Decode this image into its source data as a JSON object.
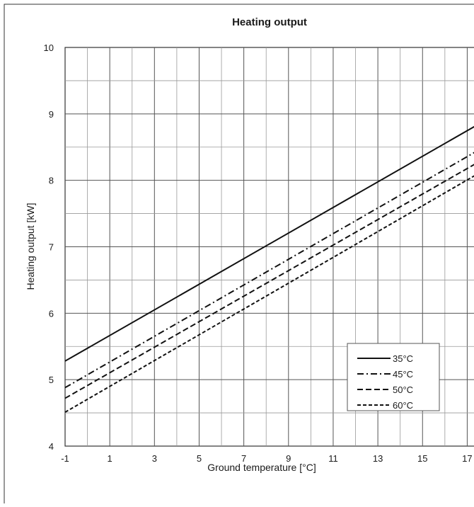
{
  "chart_data": {
    "type": "line",
    "title": "Heating output",
    "xlabel": "Ground temperature [°C]",
    "ylabel": "Heating output [kW]",
    "xlim": [
      -1,
      18
    ],
    "ylim": [
      4,
      10
    ],
    "x_ticks": [
      "-1",
      "1",
      "3",
      "5",
      "7",
      "9",
      "11",
      "13",
      "15",
      "17"
    ],
    "y_ticks": [
      "4",
      "5",
      "6",
      "7",
      "8",
      "9",
      "10"
    ],
    "grid": true,
    "legend_position": "bottom-right",
    "series": [
      {
        "name": "35°C",
        "style": "solid",
        "x": [
          -1,
          18
        ],
        "y": [
          5.28,
          8.94
        ]
      },
      {
        "name": "45°C",
        "style": "dash-dot",
        "x": [
          -1,
          18
        ],
        "y": [
          4.88,
          8.55
        ]
      },
      {
        "name": "50°C",
        "style": "dashed",
        "x": [
          -1,
          18
        ],
        "y": [
          4.72,
          8.37
        ]
      },
      {
        "name": "60°C",
        "style": "dotted-dash",
        "x": [
          -1,
          18
        ],
        "y": [
          4.51,
          8.2
        ]
      }
    ]
  }
}
